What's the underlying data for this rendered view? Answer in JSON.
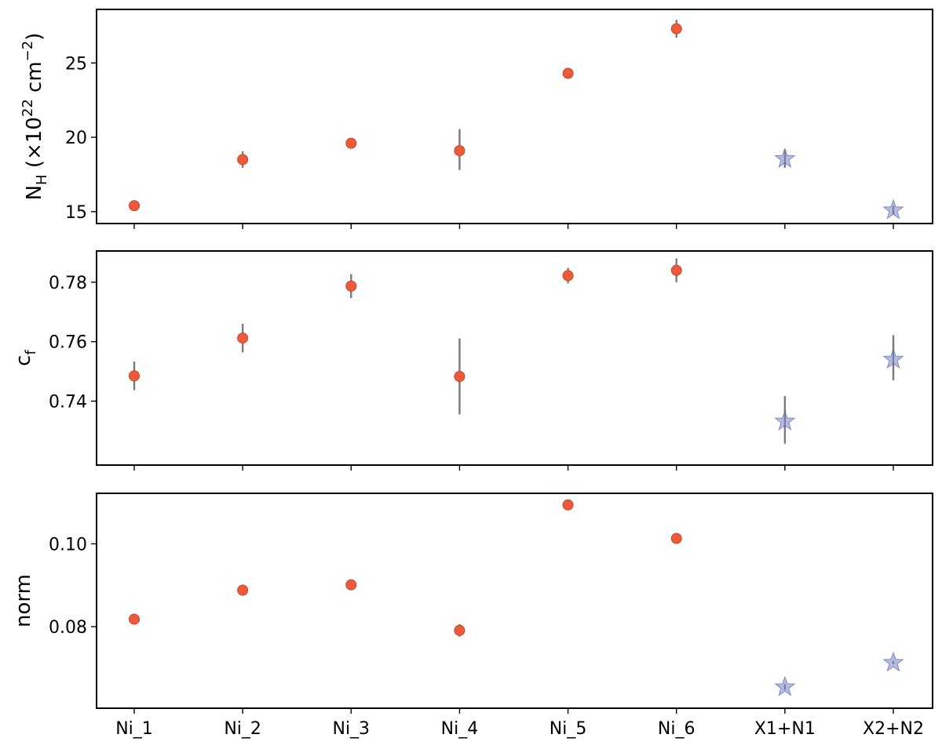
{
  "chart_data": {
    "type": "scatter",
    "categories": [
      "Ni_1",
      "Ni_2",
      "Ni_3",
      "Ni_4",
      "Ni_5",
      "Ni_6",
      "X1+N1",
      "X2+N2"
    ],
    "colors": {
      "ni_marker": "#ec5a3a",
      "x_marker": "#7a85c4",
      "errorbar": "#7a7a7a"
    },
    "marker_shapes": {
      "ni": "circle",
      "x": "star"
    },
    "panels": [
      {
        "id": "nh",
        "ylabel": {
          "main": "N",
          "sub": "H",
          "rest1": " (×10",
          "sup": "22",
          "rest2": " cm",
          "sup2": "−2",
          "rest3": ")"
        },
        "ylim": [
          14.2,
          28.6
        ],
        "yticks": [
          15,
          20,
          25
        ],
        "ytick_labels": [
          "15",
          "20",
          "25"
        ],
        "values": [
          15.4,
          18.5,
          19.6,
          19.1,
          24.3,
          27.3,
          18.55,
          15.1
        ],
        "err_low": [
          0.15,
          0.55,
          0.35,
          1.3,
          0.3,
          0.6,
          0.6,
          0.3
        ],
        "err_high": [
          0.15,
          0.55,
          0.35,
          1.45,
          0.3,
          0.6,
          0.6,
          0.3
        ]
      },
      {
        "id": "cf",
        "ylabel": {
          "main": "c",
          "sub": "f"
        },
        "ylim": [
          0.7185,
          0.7905
        ],
        "yticks": [
          0.74,
          0.76,
          0.78
        ],
        "ytick_labels": [
          "0.74",
          "0.76",
          "0.78"
        ],
        "values": [
          0.7485,
          0.7612,
          0.7787,
          0.7483,
          0.7822,
          0.784,
          0.7332,
          0.754
        ],
        "err_low": [
          0.0048,
          0.0048,
          0.004,
          0.0128,
          0.0026,
          0.004,
          0.0075,
          0.007
        ],
        "err_high": [
          0.0048,
          0.0048,
          0.004,
          0.0128,
          0.0026,
          0.004,
          0.0085,
          0.0082
        ]
      },
      {
        "id": "norm",
        "ylabel": {
          "main": "norm"
        },
        "ylim": [
          0.0603,
          0.1122
        ],
        "yticks": [
          0.08,
          0.1
        ],
        "ytick_labels": [
          "0.08",
          "0.10"
        ],
        "values": [
          0.0818,
          0.0888,
          0.0901,
          0.0791,
          0.1094,
          0.1013,
          0.0654,
          0.0713
        ],
        "err_low": [
          0.0003,
          0.0003,
          0.0003,
          0.0015,
          0.0003,
          0.0003,
          0.0007,
          0.0004
        ],
        "err_high": [
          0.0003,
          0.0003,
          0.0003,
          0.0015,
          0.0003,
          0.0003,
          0.0007,
          0.0004
        ]
      }
    ]
  }
}
